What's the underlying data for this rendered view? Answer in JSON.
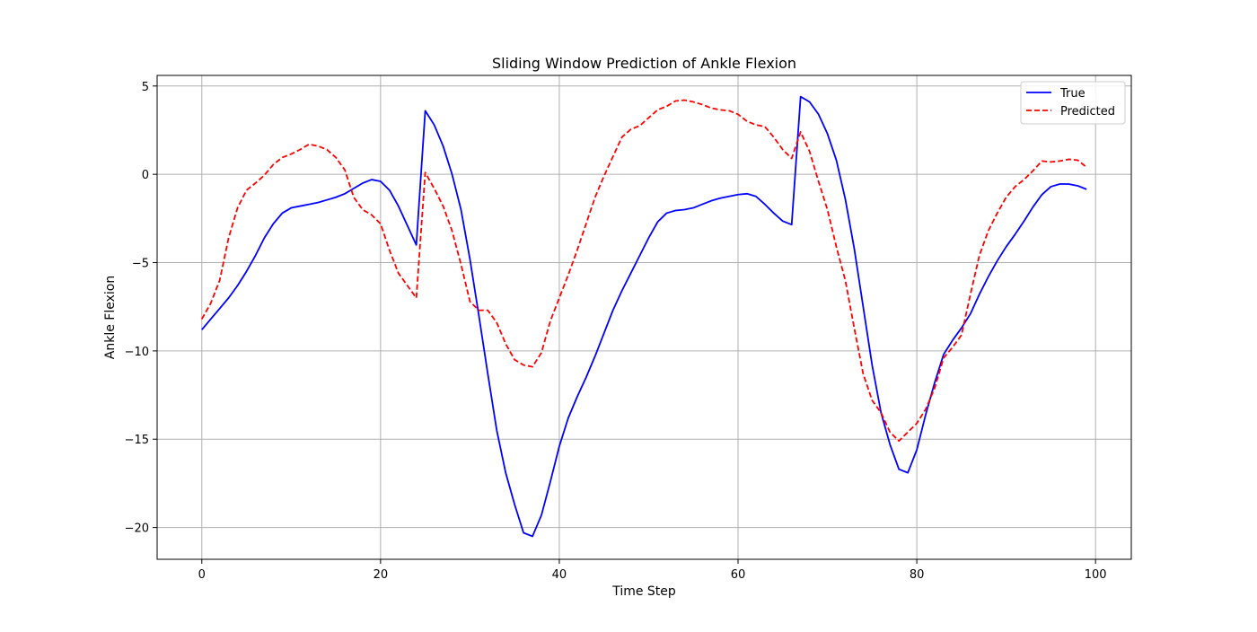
{
  "chart_data": {
    "type": "line",
    "title": "Sliding Window Prediction of Ankle Flexion",
    "xlabel": "Time Step",
    "ylabel": "Ankle Flexion",
    "xlim": [
      -5,
      104
    ],
    "ylim": [
      -21.8,
      5.6
    ],
    "xticks": [
      0,
      20,
      40,
      60,
      80,
      100
    ],
    "xtick_labels": [
      "0",
      "20",
      "40",
      "60",
      "80",
      "100"
    ],
    "yticks": [
      -20,
      -15,
      -10,
      -5,
      0,
      5
    ],
    "ytick_labels": [
      "−20",
      "−15",
      "−10",
      "−5",
      "0",
      "5"
    ],
    "grid": true,
    "legend_position": "upper right",
    "series": [
      {
        "name": "True",
        "color": "#0000ff",
        "linestyle": "solid",
        "x": [
          0,
          1,
          2,
          3,
          4,
          5,
          6,
          7,
          8,
          9,
          10,
          11,
          12,
          13,
          14,
          15,
          16,
          17,
          18,
          19,
          20,
          21,
          22,
          23,
          24,
          25,
          26,
          27,
          28,
          29,
          30,
          31,
          32,
          33,
          34,
          35,
          36,
          37,
          38,
          39,
          40,
          41,
          42,
          43,
          44,
          45,
          46,
          47,
          48,
          49,
          50,
          51,
          52,
          53,
          54,
          55,
          56,
          57,
          58,
          59,
          60,
          61,
          62,
          63,
          64,
          65,
          66,
          67,
          68,
          69,
          70,
          71,
          72,
          73,
          74,
          75,
          76,
          77,
          78,
          79,
          80,
          81,
          82,
          83,
          84,
          85,
          86,
          87,
          88,
          89,
          90,
          91,
          92,
          93,
          94,
          95,
          96,
          97,
          98,
          99
        ],
        "values": [
          -8.8,
          -8.2,
          -7.6,
          -7.0,
          -6.3,
          -5.5,
          -4.6,
          -3.6,
          -2.8,
          -2.2,
          -1.9,
          -1.8,
          -1.7,
          -1.6,
          -1.45,
          -1.3,
          -1.1,
          -0.8,
          -0.5,
          -0.3,
          -0.4,
          -0.9,
          -1.8,
          -2.9,
          -4.0,
          3.6,
          2.8,
          1.6,
          0.0,
          -2.0,
          -4.8,
          -8.0,
          -11.3,
          -14.5,
          -16.9,
          -18.7,
          -20.3,
          -20.5,
          -19.3,
          -17.4,
          -15.4,
          -13.8,
          -12.6,
          -11.5,
          -10.3,
          -9.0,
          -7.7,
          -6.6,
          -5.6,
          -4.6,
          -3.6,
          -2.7,
          -2.2,
          -2.05,
          -2.0,
          -1.9,
          -1.7,
          -1.5,
          -1.35,
          -1.25,
          -1.15,
          -1.1,
          -1.25,
          -1.7,
          -2.2,
          -2.65,
          -2.85,
          4.4,
          4.1,
          3.4,
          2.3,
          0.8,
          -1.4,
          -4.2,
          -7.5,
          -10.8,
          -13.5,
          -15.3,
          -16.7,
          -16.9,
          -15.6,
          -13.6,
          -11.8,
          -10.2,
          -9.4,
          -8.7,
          -7.9,
          -6.8,
          -5.8,
          -4.9,
          -4.1,
          -3.4,
          -2.65,
          -1.85,
          -1.15,
          -0.7,
          -0.55,
          -0.55,
          -0.65,
          -0.85
        ]
      },
      {
        "name": "Predicted",
        "color": "#ff0000",
        "linestyle": "dashed",
        "x": [
          0,
          1,
          2,
          3,
          4,
          5,
          6,
          7,
          8,
          9,
          10,
          11,
          12,
          13,
          14,
          15,
          16,
          17,
          18,
          19,
          20,
          21,
          22,
          23,
          24,
          25,
          26,
          27,
          28,
          29,
          30,
          31,
          32,
          33,
          34,
          35,
          36,
          37,
          38,
          39,
          40,
          41,
          42,
          43,
          44,
          45,
          46,
          47,
          48,
          49,
          50,
          51,
          52,
          53,
          54,
          55,
          56,
          57,
          58,
          59,
          60,
          61,
          62,
          63,
          64,
          65,
          66,
          67,
          68,
          69,
          70,
          71,
          72,
          73,
          74,
          75,
          76,
          77,
          78,
          79,
          80,
          81,
          82,
          83,
          84,
          85,
          86,
          87,
          88,
          89,
          90,
          91,
          92,
          93,
          94,
          95,
          96,
          97,
          98,
          99
        ],
        "values": [
          -8.2,
          -7.3,
          -6.0,
          -3.6,
          -1.9,
          -0.9,
          -0.5,
          -0.05,
          0.55,
          0.95,
          1.15,
          1.4,
          1.7,
          1.6,
          1.4,
          0.95,
          0.25,
          -1.3,
          -2.0,
          -2.3,
          -2.8,
          -4.3,
          -5.6,
          -6.3,
          -7.0,
          0.1,
          -0.8,
          -1.8,
          -3.2,
          -5.1,
          -7.2,
          -7.7,
          -7.7,
          -8.4,
          -9.6,
          -10.5,
          -10.8,
          -10.9,
          -10.1,
          -8.3,
          -7.0,
          -5.7,
          -4.3,
          -2.8,
          -1.3,
          -0.1,
          1.0,
          2.1,
          2.55,
          2.75,
          3.2,
          3.65,
          3.85,
          4.15,
          4.2,
          4.1,
          3.95,
          3.75,
          3.65,
          3.6,
          3.4,
          3.0,
          2.8,
          2.7,
          2.1,
          1.4,
          0.9,
          2.4,
          1.3,
          -0.4,
          -2.0,
          -4.1,
          -6.0,
          -8.7,
          -11.3,
          -12.8,
          -13.5,
          -14.6,
          -15.1,
          -14.6,
          -14.1,
          -13.3,
          -12.1,
          -10.4,
          -9.8,
          -9.1,
          -6.8,
          -4.6,
          -3.2,
          -2.2,
          -1.3,
          -0.7,
          -0.3,
          0.2,
          0.75,
          0.7,
          0.75,
          0.85,
          0.8,
          0.4
        ]
      }
    ]
  }
}
